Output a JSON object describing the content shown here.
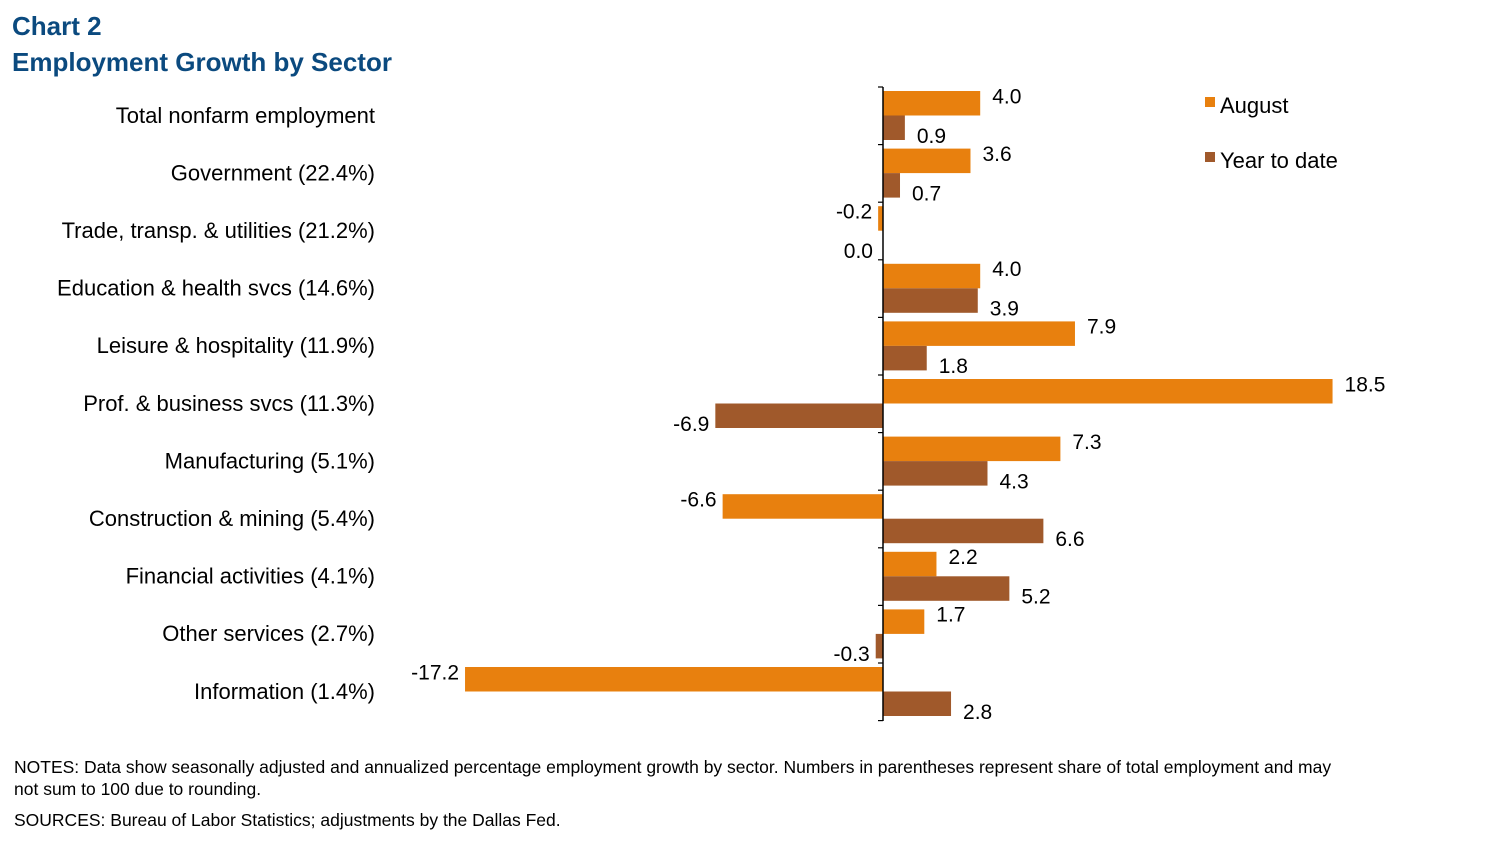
{
  "title": {
    "line1": "Chart 2",
    "line2": "Employment Growth by Sector"
  },
  "chart_data": {
    "type": "bar",
    "orientation": "horizontal",
    "categories": [
      "Total nonfarm employment",
      "Government (22.4%)",
      "Trade, transp. & utilities (21.2%)",
      "Education & health svcs (14.6%)",
      "Leisure & hospitality (11.9%)",
      "Prof. & business svcs (11.3%)",
      "Manufacturing (5.1%)",
      "Construction & mining (5.4%)",
      "Financial activities (4.1%)",
      "Other services (2.7%)",
      "Information (1.4%)"
    ],
    "series": [
      {
        "name": "August",
        "color": "#e8800e",
        "values": [
          4.0,
          3.6,
          -0.2,
          4.0,
          7.9,
          18.5,
          7.3,
          -6.6,
          2.2,
          1.7,
          -17.2
        ],
        "labels": [
          "4.0",
          "3.6",
          "-0.2",
          "4.0",
          "7.9",
          "18.5",
          "7.3",
          "-6.6",
          "2.2",
          "1.7",
          "-17.2"
        ]
      },
      {
        "name": "Year to date",
        "color": "#a0592b",
        "values": [
          0.9,
          0.7,
          0.0,
          3.9,
          1.8,
          -6.9,
          4.3,
          6.6,
          5.2,
          -0.3,
          2.8
        ],
        "labels": [
          "0.9",
          "0.7",
          "0.0",
          "3.9",
          "1.8",
          "-6.9",
          "4.3",
          "6.6",
          "5.2",
          "-0.3",
          "2.8"
        ]
      }
    ],
    "xlim": [
      -17.2,
      18.5
    ],
    "grid": false,
    "legend": "top-right",
    "data_labels": true
  },
  "notes": "NOTES: Data show seasonally adjusted and annualized percentage employment growth by sector. Numbers in parentheses represent share of total employment and may not sum to 100 due to rounding.",
  "sources": "SOURCES: Bureau of Labor Statistics; adjustments by the Dallas Fed."
}
